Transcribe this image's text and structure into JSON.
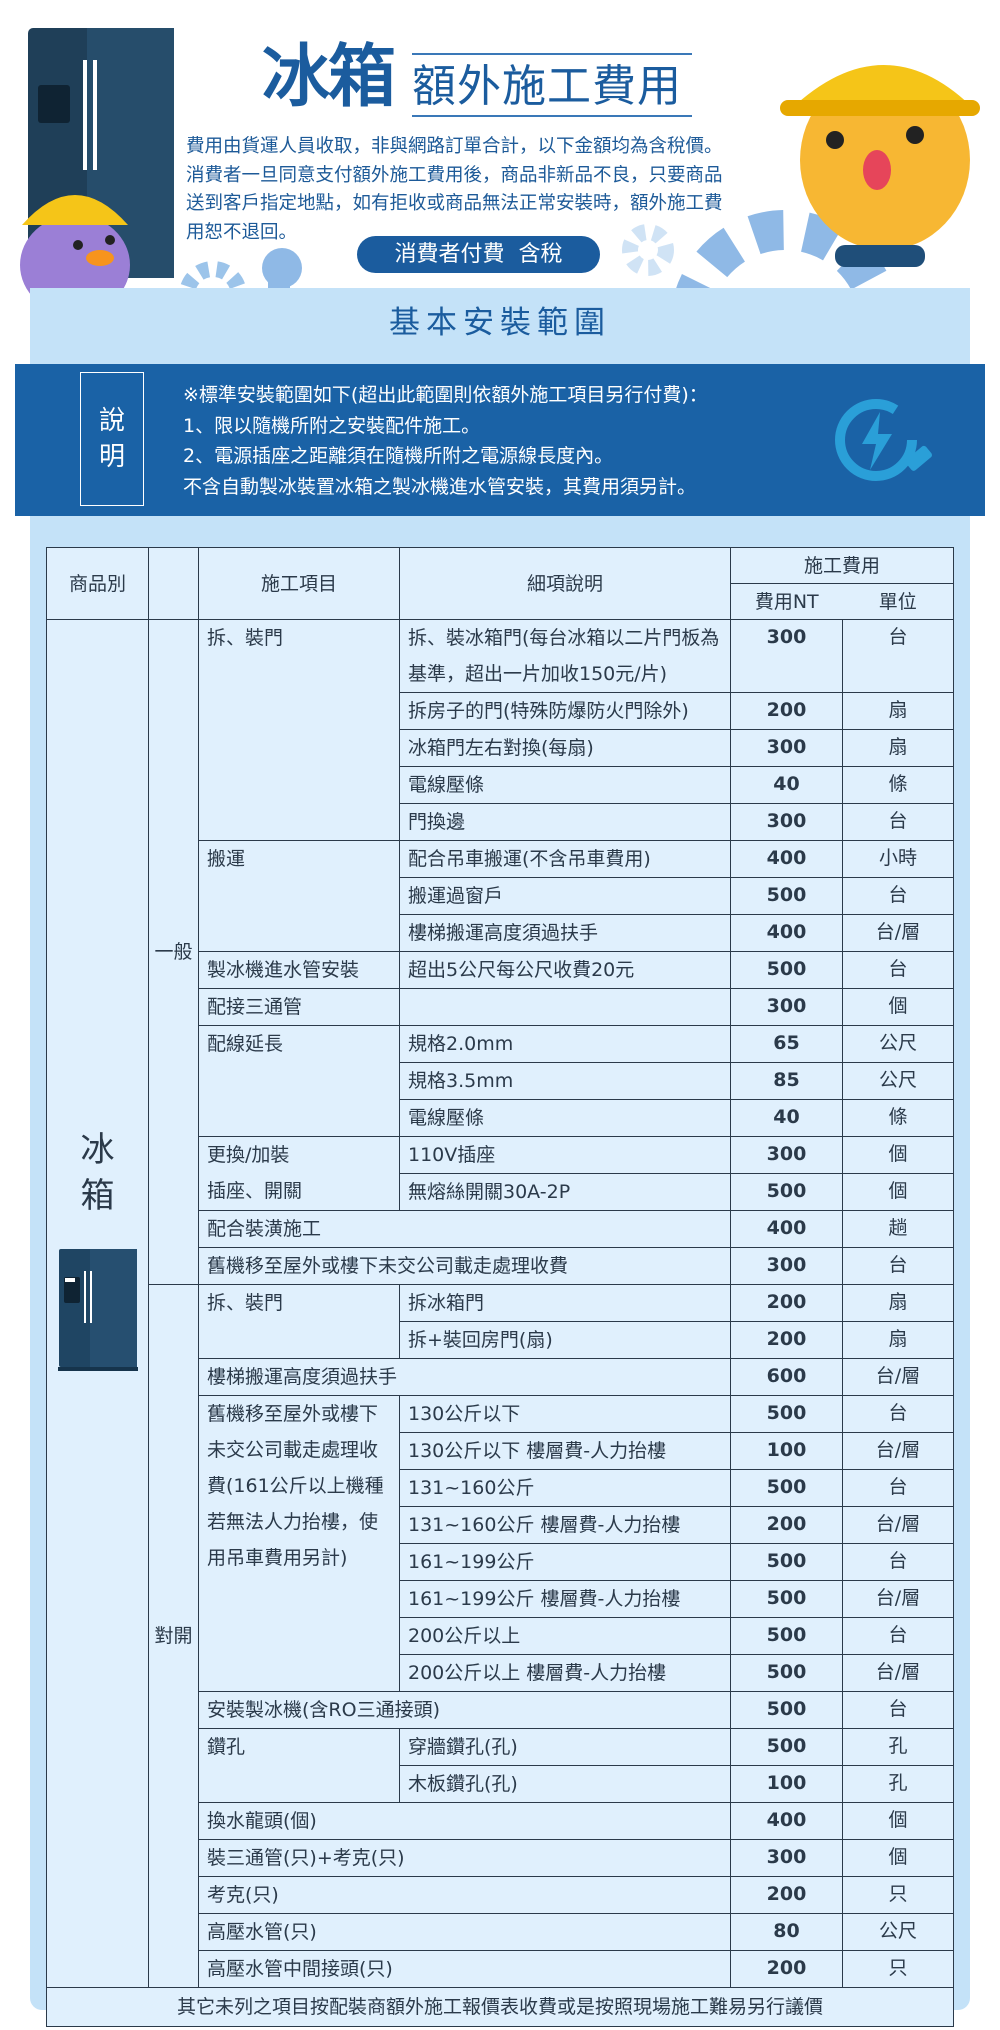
{
  "header": {
    "title_main": "冰箱",
    "title_sub": "額外施工費用",
    "intro_lines": [
      "費用由貨運人員收取，非與網路訂單合計，以下金額均為含稅價。",
      "消費者一旦同意支付額外施工費用後，商品非新品不良，只要商品",
      "送到客戶指定地點，如有拒收或商品無法正常安裝時，額外施工費",
      "用恕不退回。"
    ],
    "badge": "消費者付費  含稅",
    "section_title": "基本安裝範圍"
  },
  "notice": {
    "label": "說明",
    "lines": [
      "※標準安裝範圍如下(超出此範圍則依額外施工項目另行付費)：",
      "1、限以隨機所附之安裝配件施工。",
      "2、電源插座之距離須在隨機所附之電源線長度內。",
      "不含自動製冰裝置冰箱之製冰機進水管安裝，其費用須另計。"
    ]
  },
  "colors": {
    "brand": "#1b5c9e",
    "notice_bg": "#1a62a6",
    "panel": "#c4e2f8",
    "table_bg": "#e0f0fd"
  },
  "table": {
    "headers": {
      "product": "商品別",
      "type": "",
      "item": "施工項目",
      "detail": "細項說明",
      "fee": "施工費用",
      "price": "費用NT",
      "unit": "單位"
    },
    "product": "冰箱",
    "groups": [
      {
        "name": "一般",
        "items": [
          {
            "name": "拆、裝門",
            "details": [
              {
                "text": "拆、裝冰箱門(每台冰箱以二片門板為基準，超出一片加收150元/片)",
                "price": "300",
                "unit": "台"
              },
              {
                "text": "拆房子的門(特殊防爆防火門除外)",
                "price": "200",
                "unit": "扇"
              },
              {
                "text": "冰箱門左右對換(每扇)",
                "price": "300",
                "unit": "扇"
              },
              {
                "text": "電線壓條",
                "price": "40",
                "unit": "條"
              },
              {
                "text": "門換邊",
                "price": "300",
                "unit": "台"
              }
            ]
          },
          {
            "name": "搬運",
            "details": [
              {
                "text": "配合吊車搬運(不含吊車費用)",
                "price": "400",
                "unit": "小時"
              },
              {
                "text": "搬運過窗戶",
                "price": "500",
                "unit": "台"
              },
              {
                "text": "樓梯搬運高度須過扶手",
                "price": "400",
                "unit": "台/層"
              }
            ]
          },
          {
            "name": "製冰機進水管安裝",
            "details": [
              {
                "text": "超出5公尺每公尺收費20元",
                "price": "500",
                "unit": "台"
              }
            ]
          },
          {
            "name": "配接三通管",
            "details": [
              {
                "text": "",
                "price": "300",
                "unit": "個"
              }
            ]
          },
          {
            "name": "配線延長",
            "details": [
              {
                "text": "規格2.0mm",
                "price": "65",
                "unit": "公尺"
              },
              {
                "text": "規格3.5mm",
                "price": "85",
                "unit": "公尺"
              },
              {
                "text": "電線壓條",
                "price": "40",
                "unit": "條"
              }
            ]
          },
          {
            "name": "更換/加裝\n插座、開關",
            "details": [
              {
                "text": "110V插座",
                "price": "300",
                "unit": "個"
              },
              {
                "text": "無熔絲開關30A-2P",
                "price": "500",
                "unit": "個"
              }
            ]
          },
          {
            "name": "配合裝潢施工",
            "price": "400",
            "unit": "趟"
          },
          {
            "name": "舊機移至屋外或樓下未交公司載走處理收費",
            "price": "300",
            "unit": "台"
          }
        ]
      },
      {
        "name": "對開",
        "items": [
          {
            "name": "拆、裝門",
            "details": [
              {
                "text": "拆冰箱門",
                "price": "200",
                "unit": "扇"
              },
              {
                "text": "拆+裝回房門(扇)",
                "price": "200",
                "unit": "扇"
              }
            ]
          },
          {
            "name": "樓梯搬運高度須過扶手",
            "price": "600",
            "unit": "台/層"
          },
          {
            "name": "舊機移至屋外或樓下未交公司載走處理收費(161公斤以上機種若無法人力抬樓，使用吊車費用另計)",
            "details": [
              {
                "text": "130公斤以下",
                "price": "500",
                "unit": "台"
              },
              {
                "text": "130公斤以下 樓層費-人力抬樓",
                "price": "100",
                "unit": "台/層"
              },
              {
                "text": "131~160公斤",
                "price": "500",
                "unit": "台"
              },
              {
                "text": "131~160公斤 樓層費-人力抬樓",
                "price": "200",
                "unit": "台/層"
              },
              {
                "text": "161~199公斤",
                "price": "500",
                "unit": "台"
              },
              {
                "text": "161~199公斤 樓層費-人力抬樓",
                "price": "500",
                "unit": "台/層"
              },
              {
                "text": "200公斤以上",
                "price": "500",
                "unit": "台"
              },
              {
                "text": "200公斤以上 樓層費-人力抬樓",
                "price": "500",
                "unit": "台/層"
              }
            ]
          },
          {
            "name": "安裝製冰機(含RO三通接頭)",
            "price": "500",
            "unit": "台"
          },
          {
            "name": "鑽孔",
            "details": [
              {
                "text": "穿牆鑽孔(孔)",
                "price": "500",
                "unit": "孔"
              },
              {
                "text": "木板鑽孔(孔)",
                "price": "100",
                "unit": "孔"
              }
            ]
          },
          {
            "name": "換水龍頭(個)",
            "price": "400",
            "unit": "個"
          },
          {
            "name": "裝三通管(只)+考克(只)",
            "price": "300",
            "unit": "個"
          },
          {
            "name": "考克(只)",
            "price": "200",
            "unit": "只"
          },
          {
            "name": "高壓水管(只)",
            "price": "80",
            "unit": "公尺"
          },
          {
            "name": "高壓水管中間接頭(只)",
            "price": "200",
            "unit": "只"
          }
        ]
      }
    ],
    "footer": "其它未列之項目按配裝商額外施工報價表收費或是按照現場施工難易另行議價"
  }
}
